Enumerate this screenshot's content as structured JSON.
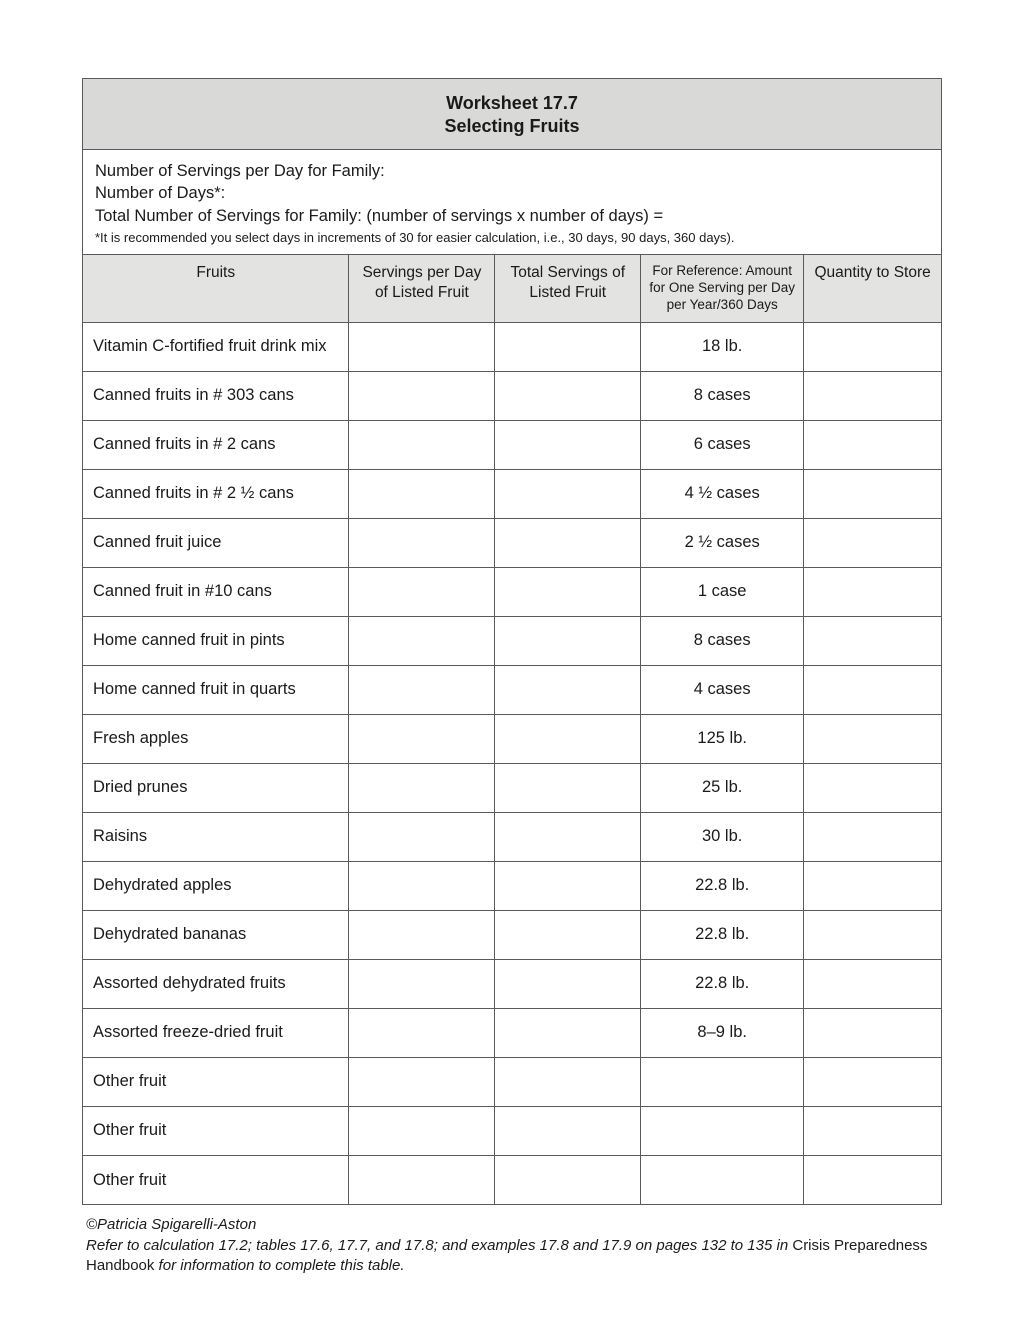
{
  "worksheet": {
    "number": "Worksheet 17.7",
    "name": "Selecting Fruits"
  },
  "intro": {
    "line1": "Number of Servings per Day for Family:",
    "line2": "Number of Days*:",
    "line3": "Total Number of Servings for Family: (number of servings x number of days) =",
    "note": "*It is recommended you select days in increments of 30 for easier calculation, i.e., 30 days, 90 days, 360 days)."
  },
  "columns": {
    "c0": "Fruits",
    "c1": "Servings per Day of Listed Fruit",
    "c2": "Total Servings of Listed Fruit",
    "c3": "For Reference: Amount for One Serving per Day per Year/360 Days",
    "c4": "Quantity to Store"
  },
  "col_widths": [
    "31%",
    "17%",
    "17%",
    "19%",
    "16%"
  ],
  "rows": [
    {
      "fruit": "Vitamin C-fortified fruit drink mix",
      "ref": "18 lb."
    },
    {
      "fruit": "Canned fruits in # 303 cans",
      "ref": "8 cases"
    },
    {
      "fruit": "Canned fruits in # 2 cans",
      "ref": "6 cases"
    },
    {
      "fruit": "Canned fruits in # 2 ½ cans",
      "ref": "4 ½ cases"
    },
    {
      "fruit": "Canned fruit juice",
      "ref": "2 ½ cases"
    },
    {
      "fruit": "Canned fruit in #10 cans",
      "ref": "1 case"
    },
    {
      "fruit": "Home canned fruit in pints",
      "ref": "8 cases"
    },
    {
      "fruit": "Home canned fruit in quarts",
      "ref": "4 cases"
    },
    {
      "fruit": "Fresh apples",
      "ref": "125 lb."
    },
    {
      "fruit": "Dried prunes",
      "ref": "25 lb."
    },
    {
      "fruit": "Raisins",
      "ref": "30 lb."
    },
    {
      "fruit": "Dehydrated apples",
      "ref": "22.8 lb."
    },
    {
      "fruit": "Dehydrated bananas",
      "ref": "22.8 lb."
    },
    {
      "fruit": "Assorted dehydrated fruits",
      "ref": "22.8 lb."
    },
    {
      "fruit": "Assorted freeze-dried fruit",
      "ref": "8–9 lb."
    },
    {
      "fruit": "Other fruit",
      "ref": ""
    },
    {
      "fruit": "Other fruit",
      "ref": ""
    },
    {
      "fruit": "Other fruit",
      "ref": ""
    }
  ],
  "footer": {
    "copyright": "©Patricia Spigarelli-Aston",
    "ref_italic_1": "Refer to calculation 17.2; tables 17.6, 17.7, and 17.8; and examples 17.8 and 17.9 on pages 132 to 135 in ",
    "ref_plain": "Crisis Preparedness Handbook",
    "ref_italic_2": " for information to complete this table."
  }
}
